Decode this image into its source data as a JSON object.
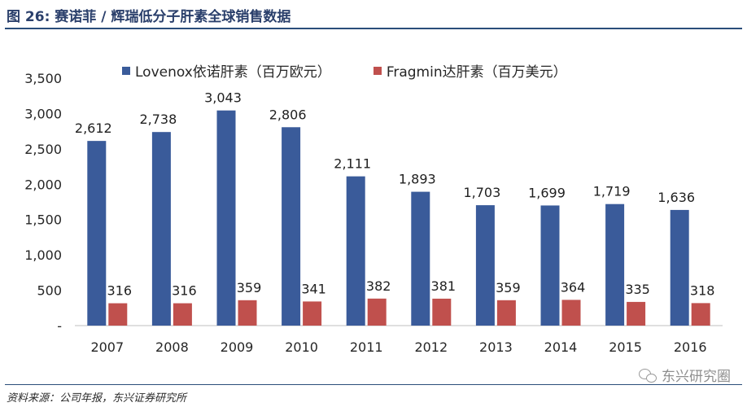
{
  "header": {
    "title": "图 26: 赛诺菲 / 辉瑞低分子肝素全球销售数据"
  },
  "footer": {
    "source": "资料来源：公司年报，东兴证券研究所",
    "watermark": "东兴研究圈",
    "watermark_icon": "wechat-icon"
  },
  "chart_data": {
    "type": "bar",
    "categories": [
      "2007",
      "2008",
      "2009",
      "2010",
      "2011",
      "2012",
      "2013",
      "2014",
      "2015",
      "2016"
    ],
    "series": [
      {
        "name": "Lovenox依诺肝素（百万欧元）",
        "color": "#3a5b9a",
        "values": [
          2612,
          2738,
          3043,
          2806,
          2111,
          1893,
          1703,
          1699,
          1719,
          1636
        ]
      },
      {
        "name": "Fragmin达肝素（百万美元）",
        "color": "#c0504d",
        "values": [
          316,
          316,
          359,
          341,
          382,
          381,
          359,
          364,
          335,
          318
        ]
      }
    ],
    "ylim": [
      0,
      3500
    ],
    "yticks": [
      0,
      500,
      1000,
      1500,
      2000,
      2500,
      3000,
      3500
    ],
    "ytick_labels": [
      "-",
      "500",
      "1,000",
      "1,500",
      "2,000",
      "2,500",
      "3,000",
      "3,500"
    ],
    "data_labels": true,
    "legend_position": "top",
    "grid": false
  }
}
